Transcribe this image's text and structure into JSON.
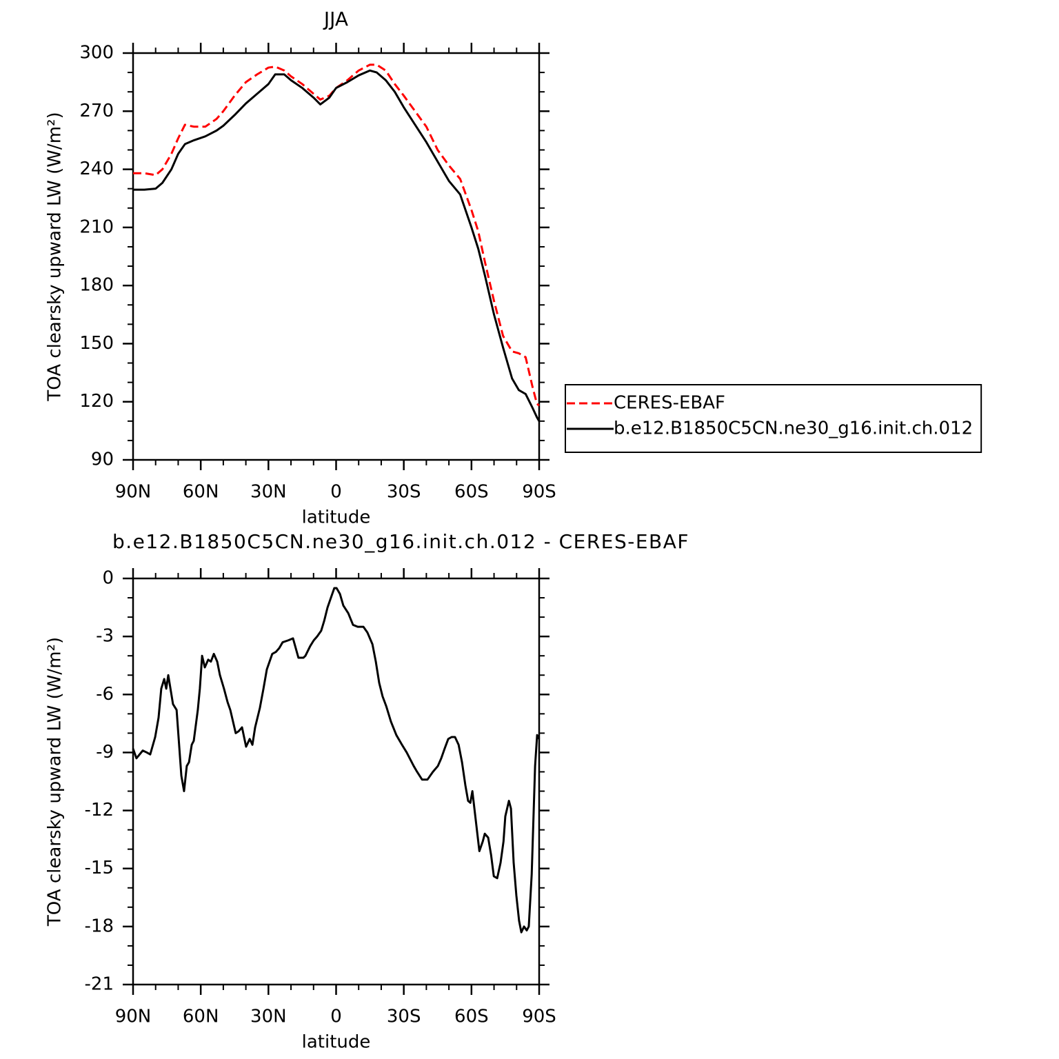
{
  "chart_data": [
    {
      "type": "line",
      "title": "JJA",
      "xlabel": "latitude",
      "ylabel": "TOA clearsky upward LW (W/m²)",
      "x": [
        90,
        85,
        80,
        77,
        73,
        70,
        67,
        63,
        58,
        53,
        50,
        45,
        40,
        35,
        30,
        27,
        23,
        20,
        15,
        10,
        7,
        3,
        0,
        -5,
        -10,
        -15,
        -18,
        -22,
        -26,
        -30,
        -35,
        -40,
        -45,
        -50,
        -55,
        -60,
        -63,
        -66,
        -70,
        -74,
        -78,
        -81,
        -84,
        -87,
        -89,
        -90
      ],
      "series": [
        {
          "name": "CERES-EBAF",
          "color": "#ff0000",
          "dash": true,
          "values": [
            238,
            238,
            237,
            240,
            248,
            256,
            263,
            262,
            262,
            266,
            270,
            278,
            285,
            289,
            292.5,
            293,
            291,
            288,
            284,
            279,
            276,
            278,
            282,
            286,
            291,
            294,
            294,
            291,
            284,
            278,
            270,
            262,
            250,
            242,
            235,
            219,
            208,
            192,
            172,
            154,
            146,
            145,
            143,
            128,
            119,
            118
          ]
        },
        {
          "name": "b.e12.B1850C5CN.ne30_g16.init.ch.012",
          "color": "#000000",
          "dash": false,
          "values": [
            229.5,
            229.5,
            230,
            233,
            240,
            248,
            253,
            255,
            257,
            260,
            262.5,
            268,
            274,
            279,
            284,
            289,
            289,
            286,
            282,
            277,
            273.5,
            277,
            282,
            285,
            288.5,
            291,
            290,
            286,
            280,
            272,
            263,
            254,
            244,
            234,
            227,
            210,
            199,
            185,
            165,
            148,
            132,
            126,
            124,
            117,
            112,
            110
          ]
        }
      ],
      "xlim": [
        90,
        -90
      ],
      "ylim": [
        90,
        300
      ],
      "xticks": [
        {
          "value": 90,
          "label": "90N"
        },
        {
          "value": 60,
          "label": "60N"
        },
        {
          "value": 30,
          "label": "30N"
        },
        0,
        {
          "value": -30,
          "label": "30S"
        },
        {
          "value": -60,
          "label": "60S"
        },
        {
          "value": -90,
          "label": "90S"
        }
      ],
      "yticks": [
        90,
        120,
        150,
        180,
        210,
        240,
        270,
        300
      ],
      "legend": "right"
    },
    {
      "type": "line",
      "title": "b.e12.B1850C5CN.ne30_g16.init.ch.012 - CERES-EBAF",
      "xlabel": "latitude",
      "ylabel": "TOA clearsky upward LW (W/m²)",
      "x": [
        90,
        88.5,
        85.7,
        83.9,
        82.4,
        80.2,
        78.7,
        77.5,
        76.2,
        75.3,
        74.4,
        72.3,
        70.7,
        68.6,
        67.4,
        66.2,
        65.2,
        64,
        63.1,
        61.3,
        60.4,
        59.4,
        58.2,
        56.7,
        55.5,
        54.2,
        52.7,
        51.5,
        49.7,
        48.1,
        46.9,
        44.5,
        43.2,
        41.7,
        39.9,
        38.3,
        37.1,
        35.9,
        33.8,
        32.2,
        30.7,
        28.3,
        26.7,
        25.2,
        23.7,
        21.2,
        19.1,
        16.7,
        14.5,
        13.6,
        11.5,
        9.9,
        8.4,
        6.6,
        5.3,
        3.8,
        2.3,
        0.8,
        -0.2,
        -1.7,
        -3.2,
        -5.4,
        -7.5,
        -9.6,
        -10.9,
        -12.1,
        -13.9,
        -16.1,
        -17.6,
        -19.1,
        -20.6,
        -22.2,
        -24.3,
        -26.7,
        -29.2,
        -31.3,
        -34.4,
        -35.9,
        -38.1,
        -40.5,
        -42.9,
        -45.1,
        -46.6,
        -48.1,
        -49.7,
        -51.2,
        -52.7,
        -54.3,
        -55.8,
        -57.3,
        -58.5,
        -59.5,
        -60.4,
        -61.9,
        -63.5,
        -65,
        -65.9,
        -67.4,
        -68.7,
        -69.9,
        -71.4,
        -72.9,
        -74.2,
        -75,
        -76.6,
        -77.5,
        -78.7,
        -79.9,
        -81.1,
        -82.1,
        -83.3,
        -84.5,
        -85.4,
        -86.7,
        -88.2,
        -89.1,
        -90
      ],
      "values": [
        -8.8,
        -9.3,
        -8.9,
        -9.0,
        -9.1,
        -8.2,
        -7.2,
        -5.7,
        -5.2,
        -5.7,
        -5.0,
        -6.5,
        -6.8,
        -10.2,
        -11.0,
        -9.7,
        -9.5,
        -8.6,
        -8.4,
        -6.8,
        -5.7,
        -4.0,
        -4.6,
        -4.2,
        -4.3,
        -3.9,
        -4.3,
        -5.0,
        -5.7,
        -6.4,
        -6.8,
        -8.0,
        -7.9,
        -7.7,
        -8.7,
        -8.3,
        -8.6,
        -7.7,
        -6.7,
        -5.7,
        -4.7,
        -3.9,
        -3.8,
        -3.6,
        -3.3,
        -3.2,
        -3.1,
        -4.1,
        -4.1,
        -4.0,
        -3.5,
        -3.2,
        -3.0,
        -2.7,
        -2.2,
        -1.5,
        -1.0,
        -0.5,
        -0.5,
        -0.8,
        -1.4,
        -1.8,
        -2.4,
        -2.5,
        -2.5,
        -2.5,
        -2.8,
        -3.4,
        -4.3,
        -5.4,
        -6.1,
        -6.6,
        -7.4,
        -8.1,
        -8.6,
        -9.0,
        -9.7,
        -10.0,
        -10.4,
        -10.4,
        -10.0,
        -9.7,
        -9.3,
        -8.8,
        -8.3,
        -8.2,
        -8.2,
        -8.6,
        -9.5,
        -10.7,
        -11.5,
        -11.6,
        -11.0,
        -12.5,
        -14.1,
        -13.6,
        -13.2,
        -13.4,
        -14.3,
        -15.4,
        -15.5,
        -14.7,
        -13.6,
        -12.3,
        -11.5,
        -11.9,
        -14.7,
        -16.4,
        -17.7,
        -18.3,
        -18.0,
        -18.2,
        -18.0,
        -15.3,
        -9.7,
        -8.1,
        -8.3
      ],
      "color": "#000000",
      "xlim": [
        90,
        -90
      ],
      "ylim": [
        -21,
        0
      ],
      "xticks": [
        {
          "value": 90,
          "label": "90N"
        },
        {
          "value": 60,
          "label": "60N"
        },
        {
          "value": 30,
          "label": "30N"
        },
        0,
        {
          "value": -30,
          "label": "30S"
        },
        {
          "value": -60,
          "label": "60S"
        },
        {
          "value": -90,
          "label": "90S"
        }
      ],
      "yticks": [
        -21,
        -18,
        -15,
        -12,
        -9,
        -6,
        -3,
        0
      ]
    }
  ]
}
